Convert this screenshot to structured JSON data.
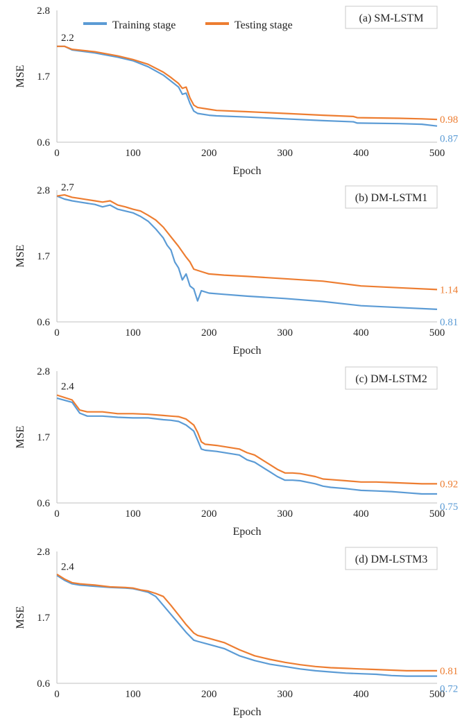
{
  "legend": {
    "items": [
      {
        "label": "Training stage",
        "color": "#5B9BD5"
      },
      {
        "label": "Testing stage",
        "color": "#ED7D31"
      }
    ]
  },
  "chart_data": [
    {
      "type": "line",
      "title": "(a) SM-LSTM",
      "xlabel": "Epoch",
      "ylabel": "MSE",
      "xlim": [
        0,
        500
      ],
      "ylim": [
        0.6,
        2.8
      ],
      "xticks": [
        "0",
        "100",
        "200",
        "300",
        "400",
        "500"
      ],
      "yticks": [
        "0.6",
        "1.7",
        "2.8"
      ],
      "start_label": "2.2",
      "end_labels": {
        "Training stage": "0.87",
        "Testing stage": "0.98"
      },
      "series": [
        {
          "name": "Training stage",
          "color": "#5B9BD5",
          "x": [
            0,
            10,
            20,
            50,
            80,
            100,
            120,
            140,
            150,
            160,
            165,
            170,
            175,
            180,
            185,
            200,
            210,
            250,
            300,
            350,
            390,
            395,
            450,
            480,
            500
          ],
          "y": [
            2.2,
            2.2,
            2.14,
            2.09,
            2.02,
            1.96,
            1.86,
            1.72,
            1.62,
            1.52,
            1.4,
            1.42,
            1.25,
            1.12,
            1.08,
            1.05,
            1.04,
            1.02,
            0.99,
            0.96,
            0.94,
            0.92,
            0.91,
            0.9,
            0.87
          ]
        },
        {
          "name": "Testing stage",
          "color": "#ED7D31",
          "x": [
            0,
            10,
            20,
            50,
            80,
            100,
            120,
            140,
            150,
            160,
            165,
            170,
            175,
            180,
            185,
            200,
            210,
            250,
            300,
            350,
            390,
            395,
            450,
            480,
            500
          ],
          "y": [
            2.2,
            2.2,
            2.15,
            2.11,
            2.04,
            1.98,
            1.9,
            1.77,
            1.68,
            1.58,
            1.5,
            1.52,
            1.34,
            1.22,
            1.18,
            1.15,
            1.13,
            1.11,
            1.08,
            1.05,
            1.03,
            1.01,
            1.0,
            0.99,
            0.98
          ]
        }
      ]
    },
    {
      "type": "line",
      "title": "(b) DM-LSTM1",
      "xlabel": "Epoch",
      "ylabel": "MSE",
      "xlim": [
        0,
        500
      ],
      "ylim": [
        0.6,
        2.8
      ],
      "xticks": [
        "0",
        "100",
        "200",
        "300",
        "400",
        "500"
      ],
      "yticks": [
        "0.6",
        "1.7",
        "2.8"
      ],
      "start_label": "2.7",
      "end_labels": {
        "Training stage": "0.81",
        "Testing stage": "1.14"
      },
      "series": [
        {
          "name": "Training stage",
          "color": "#5B9BD5",
          "x": [
            0,
            10,
            20,
            30,
            40,
            50,
            60,
            70,
            80,
            90,
            100,
            110,
            120,
            130,
            140,
            145,
            150,
            155,
            160,
            165,
            170,
            175,
            180,
            185,
            190,
            200,
            220,
            250,
            300,
            350,
            400,
            450,
            500
          ],
          "y": [
            2.7,
            2.65,
            2.62,
            2.6,
            2.58,
            2.56,
            2.52,
            2.55,
            2.48,
            2.45,
            2.42,
            2.36,
            2.28,
            2.15,
            2.0,
            1.88,
            1.8,
            1.6,
            1.5,
            1.3,
            1.4,
            1.2,
            1.15,
            0.95,
            1.12,
            1.08,
            1.06,
            1.03,
            0.99,
            0.94,
            0.87,
            0.84,
            0.81
          ]
        },
        {
          "name": "Testing stage",
          "color": "#ED7D31",
          "x": [
            0,
            10,
            20,
            30,
            40,
            50,
            60,
            70,
            80,
            90,
            100,
            110,
            120,
            130,
            140,
            150,
            160,
            170,
            175,
            180,
            190,
            200,
            220,
            250,
            300,
            350,
            400,
            450,
            500
          ],
          "y": [
            2.7,
            2.72,
            2.68,
            2.66,
            2.64,
            2.62,
            2.6,
            2.62,
            2.55,
            2.52,
            2.48,
            2.45,
            2.38,
            2.3,
            2.18,
            2.02,
            1.86,
            1.68,
            1.6,
            1.48,
            1.44,
            1.4,
            1.38,
            1.36,
            1.32,
            1.28,
            1.2,
            1.17,
            1.14
          ]
        }
      ]
    },
    {
      "type": "line",
      "title": "(c) DM-LSTM2",
      "xlabel": "Epoch",
      "ylabel": "MSE",
      "xlim": [
        0,
        500
      ],
      "ylim": [
        0.6,
        2.8
      ],
      "xticks": [
        "0",
        "100",
        "200",
        "300",
        "400",
        "500"
      ],
      "yticks": [
        "0.6",
        "1.7",
        "2.8"
      ],
      "start_label": "2.4",
      "end_labels": {
        "Training stage": "0.75",
        "Testing stage": "0.92"
      },
      "series": [
        {
          "name": "Training stage",
          "color": "#5B9BD5",
          "x": [
            0,
            20,
            30,
            40,
            60,
            80,
            100,
            120,
            140,
            150,
            160,
            170,
            180,
            185,
            190,
            195,
            210,
            240,
            250,
            260,
            270,
            280,
            290,
            300,
            310,
            320,
            340,
            350,
            360,
            380,
            400,
            420,
            440,
            460,
            480,
            500
          ],
          "y": [
            2.35,
            2.28,
            2.1,
            2.05,
            2.05,
            2.03,
            2.02,
            2.02,
            1.99,
            1.98,
            1.96,
            1.9,
            1.8,
            1.65,
            1.5,
            1.48,
            1.46,
            1.4,
            1.32,
            1.28,
            1.2,
            1.12,
            1.04,
            0.98,
            0.98,
            0.97,
            0.92,
            0.88,
            0.86,
            0.84,
            0.81,
            0.8,
            0.79,
            0.77,
            0.75,
            0.75
          ]
        },
        {
          "name": "Testing stage",
          "color": "#ED7D31",
          "x": [
            0,
            20,
            30,
            40,
            60,
            80,
            100,
            120,
            140,
            150,
            160,
            170,
            180,
            185,
            190,
            195,
            210,
            240,
            250,
            260,
            270,
            280,
            290,
            300,
            310,
            320,
            340,
            350,
            360,
            380,
            400,
            420,
            440,
            460,
            480,
            500
          ],
          "y": [
            2.4,
            2.32,
            2.15,
            2.12,
            2.12,
            2.09,
            2.09,
            2.08,
            2.06,
            2.05,
            2.04,
            2.0,
            1.9,
            1.78,
            1.62,
            1.58,
            1.56,
            1.5,
            1.44,
            1.4,
            1.32,
            1.24,
            1.16,
            1.1,
            1.1,
            1.09,
            1.04,
            1.0,
            0.99,
            0.97,
            0.95,
            0.95,
            0.94,
            0.93,
            0.92,
            0.92
          ]
        }
      ]
    },
    {
      "type": "line",
      "title": "(d) DM-LSTM3",
      "xlabel": "Epoch",
      "ylabel": "MSE",
      "xlim": [
        0,
        500
      ],
      "ylim": [
        0.6,
        2.8
      ],
      "xticks": [
        "0",
        "100",
        "200",
        "300",
        "400",
        "500"
      ],
      "yticks": [
        "0.6",
        "1.7",
        "2.8"
      ],
      "start_label": "2.4",
      "end_labels": {
        "Training stage": "0.72",
        "Testing stage": "0.81"
      },
      "series": [
        {
          "name": "Training stage",
          "color": "#5B9BD5",
          "x": [
            0,
            10,
            20,
            30,
            50,
            70,
            90,
            100,
            110,
            120,
            130,
            140,
            150,
            160,
            170,
            180,
            185,
            200,
            220,
            240,
            260,
            280,
            300,
            320,
            340,
            360,
            380,
            400,
            420,
            440,
            460,
            480,
            500
          ],
          "y": [
            2.4,
            2.32,
            2.26,
            2.24,
            2.22,
            2.2,
            2.19,
            2.18,
            2.15,
            2.12,
            2.05,
            1.9,
            1.75,
            1.6,
            1.45,
            1.32,
            1.3,
            1.25,
            1.18,
            1.06,
            0.98,
            0.92,
            0.88,
            0.84,
            0.81,
            0.79,
            0.77,
            0.76,
            0.75,
            0.73,
            0.72,
            0.72,
            0.72
          ]
        },
        {
          "name": "Testing stage",
          "color": "#ED7D31",
          "x": [
            0,
            10,
            20,
            30,
            50,
            70,
            90,
            100,
            110,
            120,
            130,
            140,
            150,
            160,
            170,
            180,
            185,
            200,
            220,
            240,
            260,
            280,
            300,
            320,
            340,
            360,
            380,
            400,
            420,
            440,
            460,
            480,
            500
          ],
          "y": [
            2.42,
            2.34,
            2.28,
            2.26,
            2.24,
            2.21,
            2.2,
            2.19,
            2.16,
            2.14,
            2.1,
            2.05,
            1.9,
            1.74,
            1.58,
            1.44,
            1.4,
            1.35,
            1.28,
            1.16,
            1.06,
            1.0,
            0.95,
            0.91,
            0.88,
            0.86,
            0.85,
            0.84,
            0.83,
            0.82,
            0.81,
            0.81,
            0.81
          ]
        }
      ]
    }
  ]
}
